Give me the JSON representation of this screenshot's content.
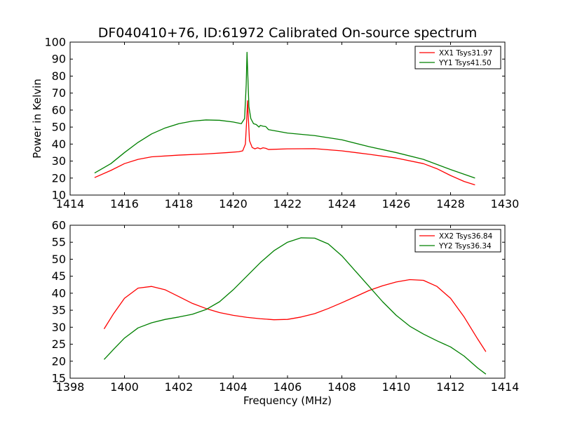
{
  "figure_title": "DF040410+76, ID:61972 Calibrated On-source spectrum",
  "colors": {
    "red": "#ff0000",
    "green": "#008000"
  },
  "chart_data": [
    {
      "type": "line",
      "ylabel": "Power in Kelvin",
      "xlabel": "",
      "xlim": [
        1414,
        1430
      ],
      "ylim": [
        10,
        100
      ],
      "xticks": [
        1414,
        1416,
        1418,
        1420,
        1422,
        1424,
        1426,
        1428,
        1430
      ],
      "yticks": [
        10,
        20,
        30,
        40,
        50,
        60,
        70,
        80,
        90,
        100
      ],
      "legend_position": "top-right",
      "series": [
        {
          "name": "XX1 Tsys31.97",
          "color": "#ff0000",
          "points": [
            [
              1414.9,
              20.3
            ],
            [
              1415.5,
              24.5
            ],
            [
              1416,
              28.5
            ],
            [
              1416.5,
              31
            ],
            [
              1417,
              32.5
            ],
            [
              1418,
              33.5
            ],
            [
              1419,
              34.2
            ],
            [
              1419.8,
              35
            ],
            [
              1420.2,
              35.5
            ],
            [
              1420.35,
              36
            ],
            [
              1420.45,
              40
            ],
            [
              1420.5,
              55
            ],
            [
              1420.53,
              65.5
            ],
            [
              1420.56,
              55
            ],
            [
              1420.6,
              42
            ],
            [
              1420.7,
              38
            ],
            [
              1420.8,
              37.2
            ],
            [
              1420.9,
              37.8
            ],
            [
              1421,
              37.2
            ],
            [
              1421.1,
              37.8
            ],
            [
              1421.2,
              37.5
            ],
            [
              1421.3,
              36.8
            ],
            [
              1422,
              37.2
            ],
            [
              1423,
              37.3
            ],
            [
              1424,
              36
            ],
            [
              1425,
              34
            ],
            [
              1426,
              31.8
            ],
            [
              1427,
              28.5
            ],
            [
              1427.5,
              25.5
            ],
            [
              1428,
              21.5
            ],
            [
              1428.5,
              18
            ],
            [
              1428.9,
              16
            ]
          ]
        },
        {
          "name": "YY1 Tsys41.50",
          "color": "#008000",
          "points": [
            [
              1414.9,
              23
            ],
            [
              1415.5,
              28.5
            ],
            [
              1416,
              35
            ],
            [
              1416.5,
              41
            ],
            [
              1417,
              46
            ],
            [
              1417.5,
              49.5
            ],
            [
              1418,
              52
            ],
            [
              1418.5,
              53.5
            ],
            [
              1419,
              54.2
            ],
            [
              1419.5,
              54
            ],
            [
              1420,
              53
            ],
            [
              1420.3,
              52
            ],
            [
              1420.42,
              55
            ],
            [
              1420.48,
              75
            ],
            [
              1420.51,
              94
            ],
            [
              1420.54,
              80
            ],
            [
              1420.58,
              62
            ],
            [
              1420.65,
              55
            ],
            [
              1420.75,
              52
            ],
            [
              1420.85,
              51.5
            ],
            [
              1420.95,
              50
            ],
            [
              1421,
              51
            ],
            [
              1421.1,
              50.5
            ],
            [
              1421.2,
              50.3
            ],
            [
              1421.3,
              48.5
            ],
            [
              1422,
              46.5
            ],
            [
              1423,
              45
            ],
            [
              1424,
              42.5
            ],
            [
              1425,
              38.5
            ],
            [
              1426,
              35
            ],
            [
              1427,
              31
            ],
            [
              1428,
              25
            ],
            [
              1428.9,
              20
            ]
          ]
        }
      ]
    },
    {
      "type": "line",
      "ylabel": "",
      "xlabel": "Frequency (MHz)",
      "xlim": [
        1398,
        1414
      ],
      "ylim": [
        15,
        60
      ],
      "xticks": [
        1398,
        1400,
        1402,
        1404,
        1406,
        1408,
        1410,
        1412,
        1414
      ],
      "yticks": [
        15,
        20,
        25,
        30,
        35,
        40,
        45,
        50,
        55,
        60
      ],
      "legend_position": "top-right",
      "series": [
        {
          "name": "XX2 Tsys36.84",
          "color": "#ff0000",
          "points": [
            [
              1399.25,
              29.5
            ],
            [
              1399.6,
              34
            ],
            [
              1400,
              38.5
            ],
            [
              1400.5,
              41.5
            ],
            [
              1401,
              42
            ],
            [
              1401.5,
              41
            ],
            [
              1402,
              39
            ],
            [
              1402.5,
              37
            ],
            [
              1403,
              35.5
            ],
            [
              1403.5,
              34.3
            ],
            [
              1404,
              33.5
            ],
            [
              1404.5,
              32.9
            ],
            [
              1405,
              32.5
            ],
            [
              1405.5,
              32.2
            ],
            [
              1406,
              32.3
            ],
            [
              1406.5,
              33
            ],
            [
              1407,
              34
            ],
            [
              1407.5,
              35.5
            ],
            [
              1408,
              37.2
            ],
            [
              1408.5,
              39
            ],
            [
              1409,
              40.8
            ],
            [
              1409.5,
              42.2
            ],
            [
              1410,
              43.3
            ],
            [
              1410.5,
              44
            ],
            [
              1411,
              43.8
            ],
            [
              1411.5,
              42
            ],
            [
              1412,
              38.5
            ],
            [
              1412.5,
              33
            ],
            [
              1413,
              26.5
            ],
            [
              1413.3,
              22.8
            ]
          ]
        },
        {
          "name": "YY2 Tsys36.34",
          "color": "#008000",
          "points": [
            [
              1399.25,
              20.5
            ],
            [
              1399.6,
              23.5
            ],
            [
              1400,
              26.8
            ],
            [
              1400.5,
              29.8
            ],
            [
              1401,
              31.3
            ],
            [
              1401.5,
              32.3
            ],
            [
              1402,
              33
            ],
            [
              1402.5,
              33.8
            ],
            [
              1403,
              35.2
            ],
            [
              1403.5,
              37.5
            ],
            [
              1404,
              41
            ],
            [
              1404.5,
              45
            ],
            [
              1405,
              49
            ],
            [
              1405.5,
              52.5
            ],
            [
              1406,
              55
            ],
            [
              1406.5,
              56.3
            ],
            [
              1407,
              56.2
            ],
            [
              1407.5,
              54.5
            ],
            [
              1408,
              51
            ],
            [
              1408.5,
              46.5
            ],
            [
              1409,
              42
            ],
            [
              1409.5,
              37.5
            ],
            [
              1410,
              33.5
            ],
            [
              1410.5,
              30.3
            ],
            [
              1411,
              28
            ],
            [
              1411.5,
              26
            ],
            [
              1412,
              24.2
            ],
            [
              1412.5,
              21.5
            ],
            [
              1413,
              18
            ],
            [
              1413.3,
              16.2
            ]
          ]
        }
      ]
    }
  ]
}
